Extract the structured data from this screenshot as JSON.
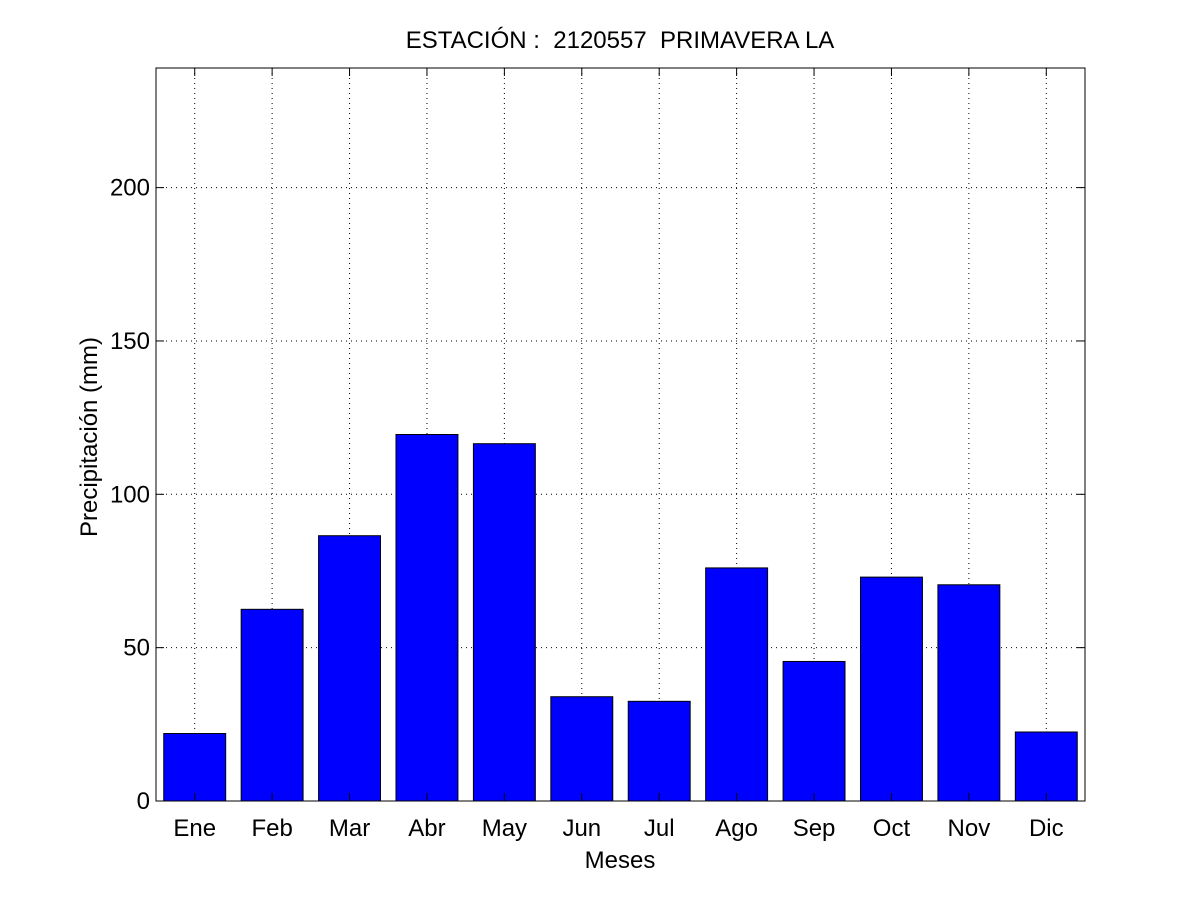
{
  "chart_data": {
    "type": "bar",
    "title": "ESTACIÓN :  2120557  PRIMAVERA LA",
    "xlabel": "Meses",
    "ylabel": "Precipitación (mm)",
    "categories": [
      "Ene",
      "Feb",
      "Mar",
      "Abr",
      "May",
      "Jun",
      "Jul",
      "Ago",
      "Sep",
      "Oct",
      "Nov",
      "Dic"
    ],
    "values": [
      22,
      62.5,
      86.5,
      119.5,
      116.5,
      34,
      32.5,
      76,
      45.5,
      73,
      70.5,
      22.5
    ],
    "ylim": [
      0,
      239
    ],
    "yticks": [
      0,
      50,
      100,
      150,
      200
    ],
    "grid": true,
    "bar_color": "#0000ff",
    "bar_edge_color": "#000000"
  }
}
